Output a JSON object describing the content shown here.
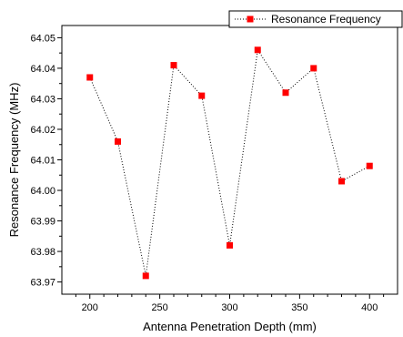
{
  "chart_data": {
    "type": "scatter",
    "connected": true,
    "line_style": "dotted",
    "marker": "square",
    "marker_color": "#ff0000",
    "line_color": "#000000",
    "xlabel": "Antenna Penetration Depth (mm)",
    "ylabel": "Resonance Frequency (MHz)",
    "xlim": [
      180,
      420
    ],
    "ylim": [
      63.966,
      64.054
    ],
    "x_ticks": [
      "200",
      "250",
      "300",
      "350",
      "400"
    ],
    "y_ticks": [
      "63.97",
      "63.98",
      "63.99",
      "64.00",
      "64.01",
      "64.02",
      "64.03",
      "64.04",
      "64.05"
    ],
    "legend_position": "top-right",
    "grid": false,
    "series": [
      {
        "name": "Resonance Frequency",
        "x": [
          200,
          220,
          240,
          260,
          280,
          300,
          320,
          340,
          360,
          380,
          400
        ],
        "y": [
          64.037,
          64.016,
          63.972,
          64.041,
          64.031,
          63.982,
          64.046,
          64.032,
          64.04,
          64.003,
          64.008
        ]
      }
    ]
  }
}
